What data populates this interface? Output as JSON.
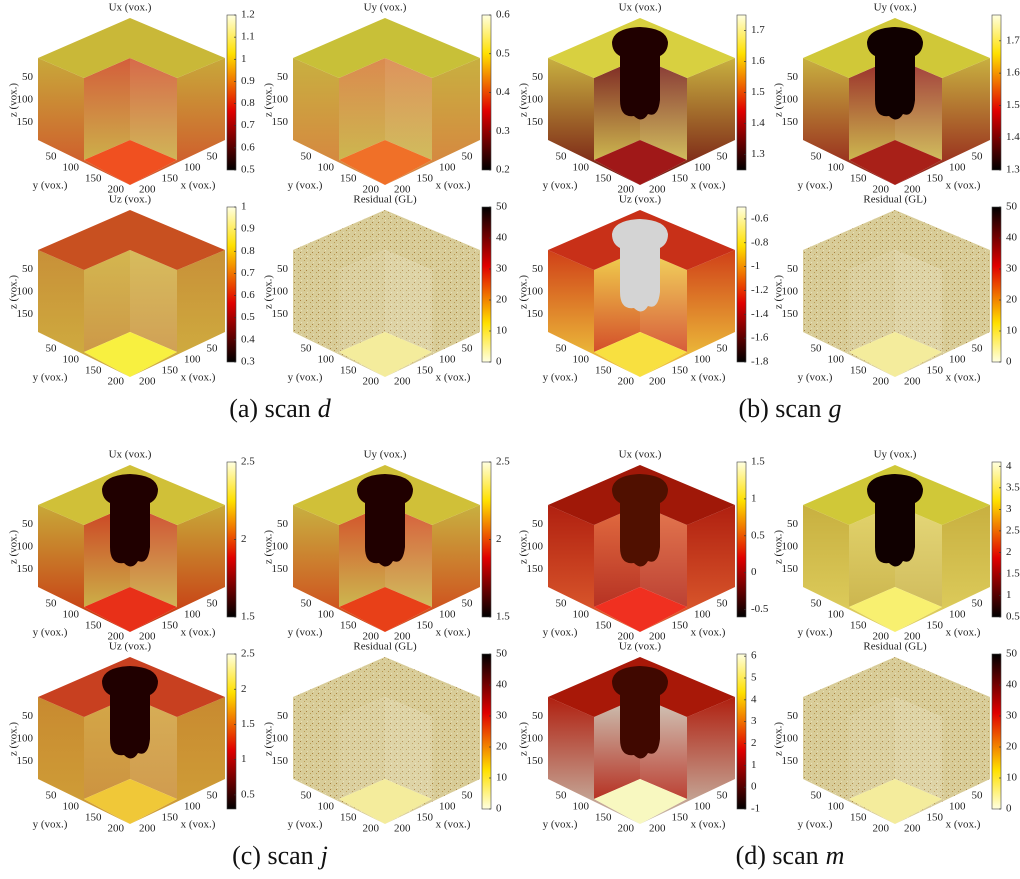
{
  "axes": {
    "z_label": "z (vox.)",
    "y_label": "y (vox.)",
    "x_label": "x (vox.)",
    "z_ticks": [
      50,
      100,
      150
    ],
    "y_ticks": [
      50,
      100,
      150,
      200
    ],
    "x_ticks": [
      50,
      100,
      150,
      200
    ]
  },
  "groups": [
    {
      "label": "(a) scan",
      "var": "d",
      "plots": [
        {
          "title": "Ux (vox.)",
          "clim": [
            0.5,
            1.2
          ],
          "ticks": [
            0.5,
            0.6,
            0.7,
            0.8,
            0.9,
            1,
            1.1,
            1.2
          ],
          "reverse": false
        },
        {
          "title": "Uy (vox.)",
          "clim": [
            0.2,
            0.6
          ],
          "ticks": [
            0.2,
            0.3,
            0.4,
            0.5,
            0.6
          ],
          "reverse": false
        },
        {
          "title": "Uz (vox.)",
          "clim": [
            0.3,
            1
          ],
          "ticks": [
            0.3,
            0.4,
            0.5,
            0.6,
            0.7,
            0.8,
            0.9,
            1
          ],
          "reverse": false
        },
        {
          "title": "Residual (GL)",
          "clim": [
            0,
            50
          ],
          "ticks": [
            0,
            10,
            20,
            30,
            40,
            50
          ],
          "reverse": true
        }
      ]
    },
    {
      "label": "(b) scan",
      "var": "g",
      "plots": [
        {
          "title": "Ux (vox.)",
          "clim": [
            1.25,
            1.75
          ],
          "ticks": [
            1.3,
            1.4,
            1.5,
            1.6,
            1.7
          ],
          "reverse": false
        },
        {
          "title": "Uy (vox.)",
          "clim": [
            1.3,
            1.78
          ],
          "ticks": [
            1.3,
            1.4,
            1.5,
            1.6,
            1.7
          ],
          "reverse": false
        },
        {
          "title": "Uz (vox.)",
          "clim": [
            -1.8,
            -0.5
          ],
          "ticks": [
            -1.8,
            -1.6,
            -1.4,
            -1.2,
            -1,
            -0.8,
            -0.6
          ],
          "reverse": false
        },
        {
          "title": "Residual (GL)",
          "clim": [
            0,
            50
          ],
          "ticks": [
            0,
            10,
            20,
            30,
            40,
            50
          ],
          "reverse": true
        }
      ]
    },
    {
      "label": "(c) scan",
      "var": "j",
      "plots": [
        {
          "title": "Ux (vox.)",
          "clim": [
            1.5,
            2.5
          ],
          "ticks": [
            1.5,
            2,
            2.5
          ],
          "reverse": false
        },
        {
          "title": "Uy (vox.)",
          "clim": [
            1.5,
            2.5
          ],
          "ticks": [
            1.5,
            2,
            2.5
          ],
          "reverse": false
        },
        {
          "title": "Uz (vox.)",
          "clim": [
            0.3,
            2.5
          ],
          "ticks": [
            0.5,
            1,
            1.5,
            2,
            2.5
          ],
          "reverse": false
        },
        {
          "title": "Residual (GL)",
          "clim": [
            0,
            50
          ],
          "ticks": [
            0,
            10,
            20,
            30,
            40,
            50
          ],
          "reverse": true
        }
      ]
    },
    {
      "label": "(d) scan",
      "var": "m",
      "plots": [
        {
          "title": "Ux (vox.)",
          "clim": [
            -0.6,
            1.5
          ],
          "ticks": [
            -0.5,
            0,
            0.5,
            1,
            1.5
          ],
          "reverse": false
        },
        {
          "title": "Uy (vox.)",
          "clim": [
            0.5,
            4.1
          ],
          "ticks": [
            0.5,
            1,
            1.5,
            2,
            2.5,
            3,
            3.5,
            4
          ],
          "reverse": false
        },
        {
          "title": "Uz (vox.)",
          "clim": [
            -1,
            6.1
          ],
          "ticks": [
            -1,
            0,
            1,
            2,
            3,
            4,
            5,
            6
          ],
          "reverse": false
        },
        {
          "title": "Residual (GL)",
          "clim": [
            0,
            50
          ],
          "ticks": [
            0,
            10,
            20,
            30,
            40,
            50
          ],
          "reverse": true
        }
      ]
    }
  ]
}
